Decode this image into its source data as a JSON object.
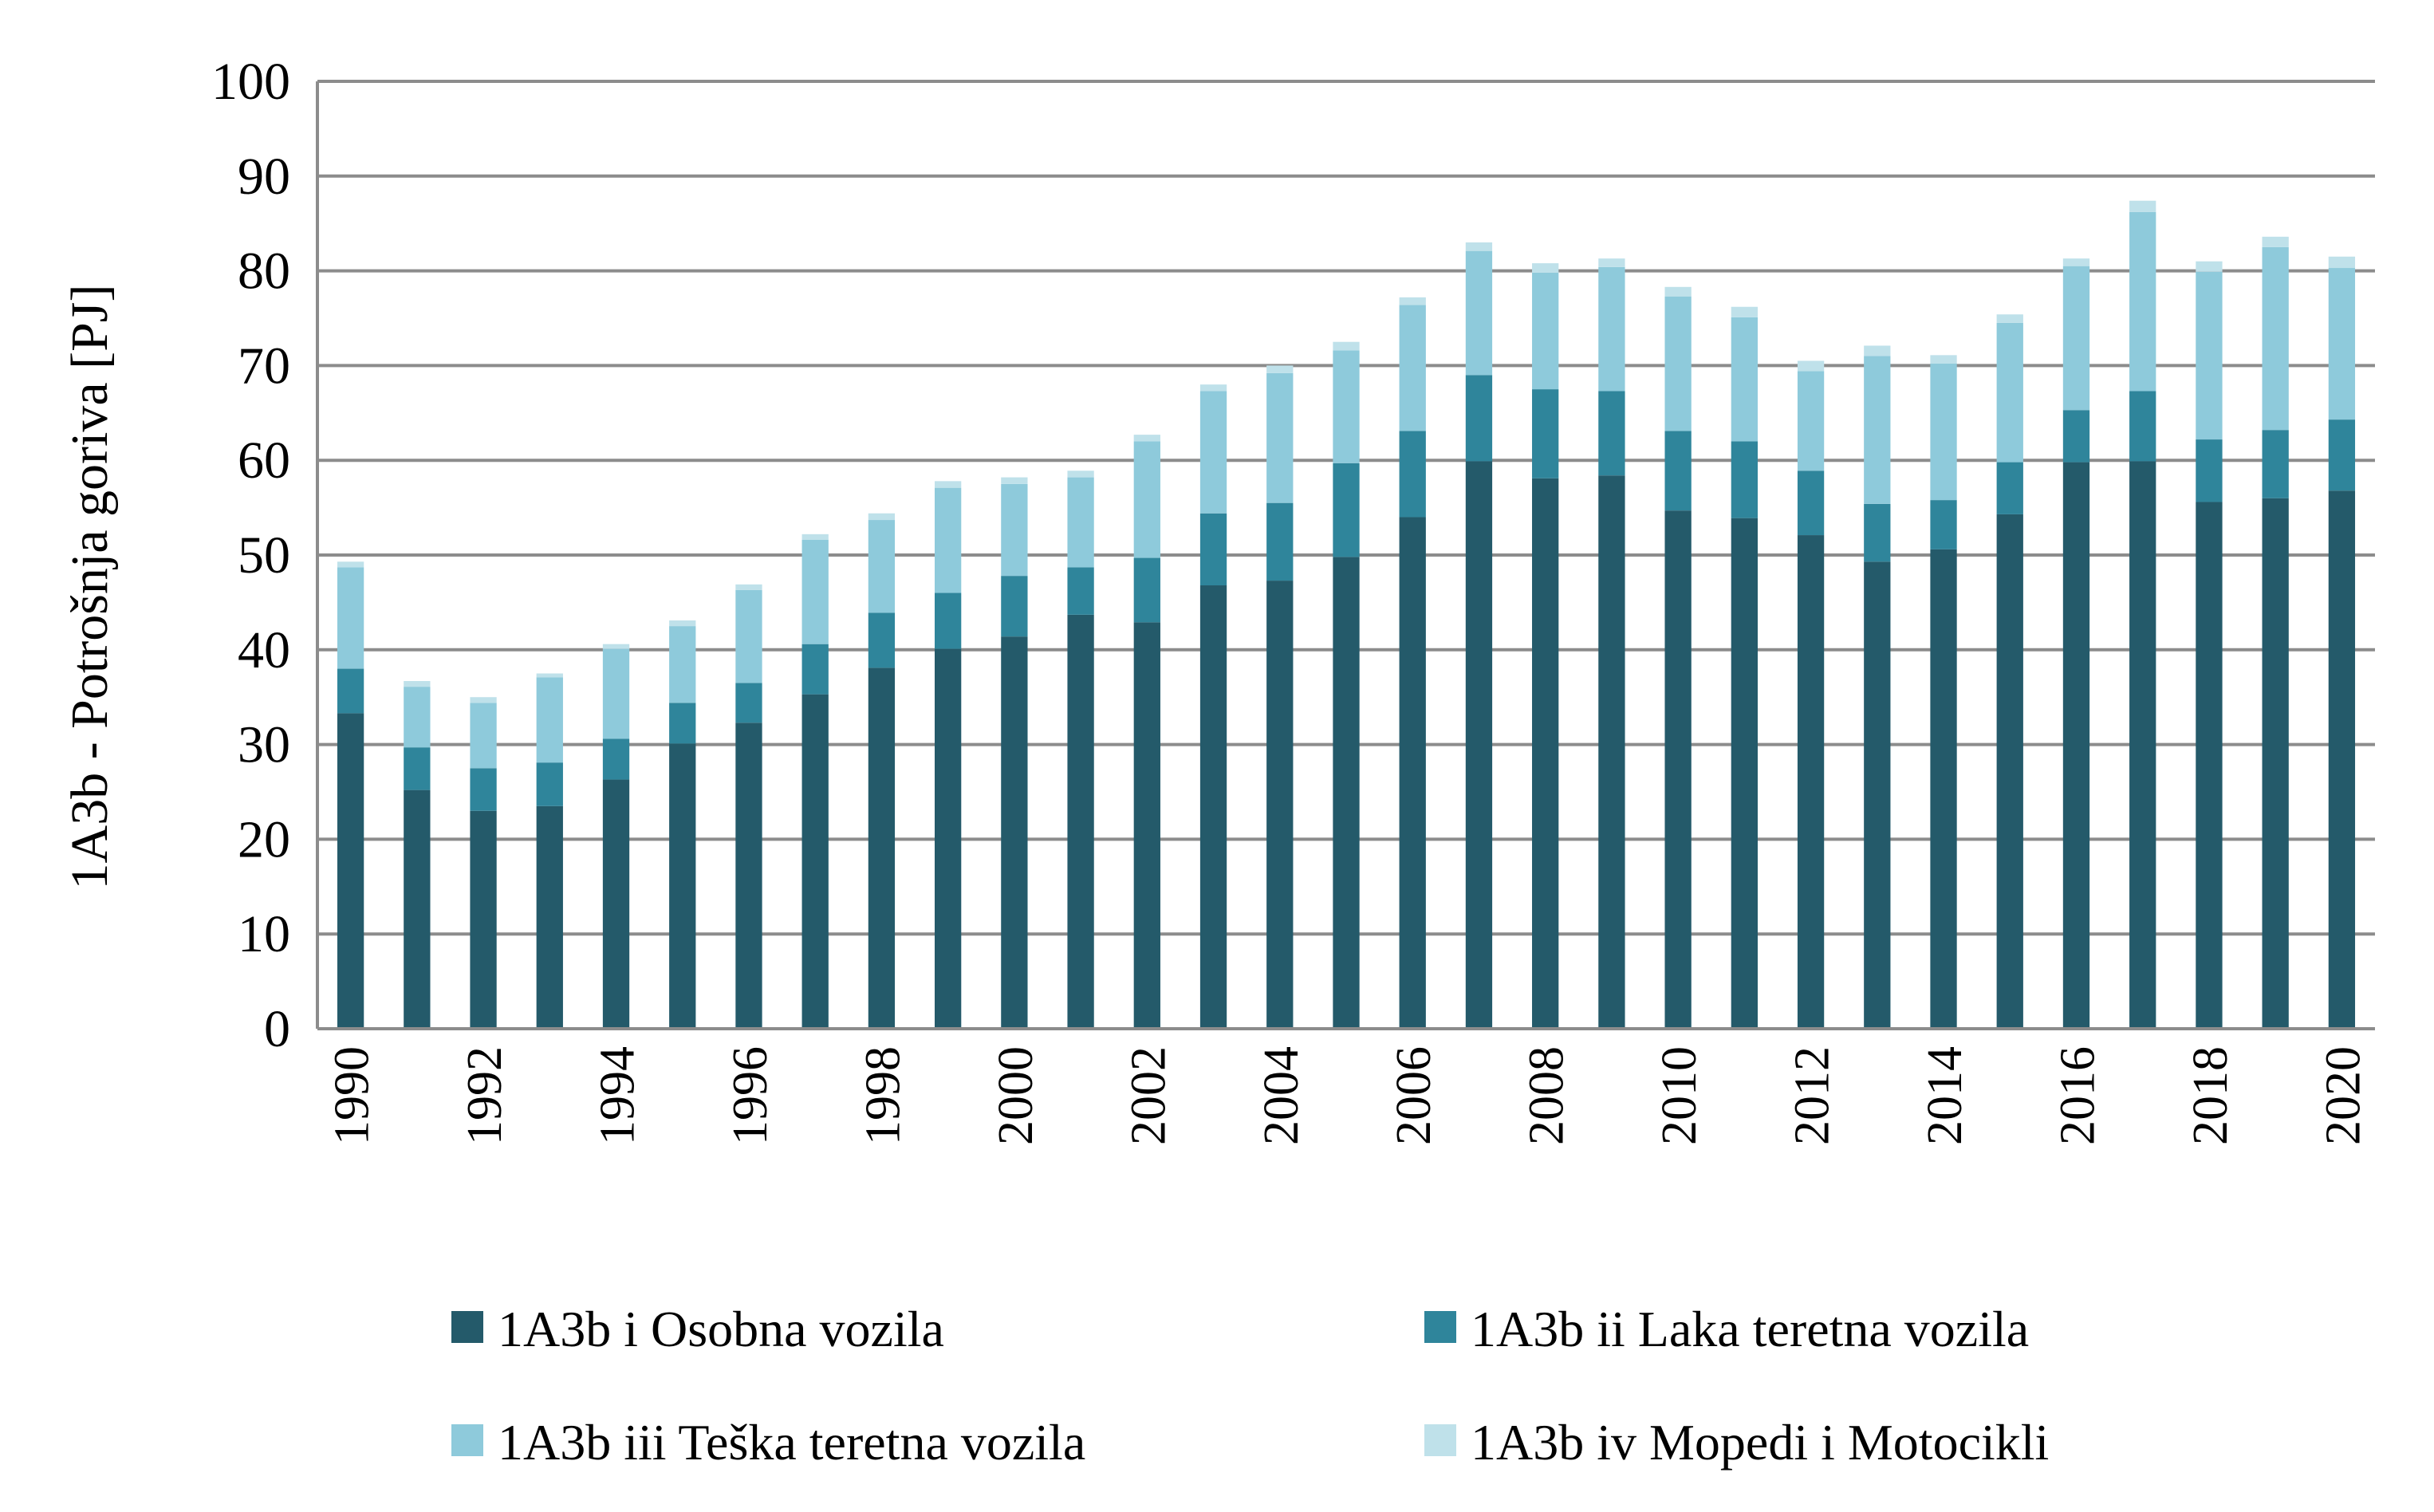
{
  "chart_data": {
    "type": "bar",
    "stacked": true,
    "title": "",
    "xlabel": "",
    "ylabel": "1A3b  - Potrošnja goriva [PJ]",
    "ylim": [
      0,
      100
    ],
    "yticks": [
      "0",
      "10",
      "20",
      "30",
      "40",
      "50",
      "60",
      "70",
      "80",
      "90",
      "100"
    ],
    "grid": true,
    "legend_position": "bottom",
    "categories": [
      "1990",
      "1991",
      "1992",
      "1993",
      "1994",
      "1995",
      "1996",
      "1997",
      "1998",
      "1999",
      "2000",
      "2001",
      "2002",
      "2003",
      "2004",
      "2005",
      "2006",
      "2007",
      "2008",
      "2009",
      "2010",
      "2011",
      "2012",
      "2013",
      "2014",
      "2015",
      "2016",
      "2017",
      "2018",
      "2019",
      "2020"
    ],
    "xtick_labels": [
      "1990",
      "1992",
      "1994",
      "1996",
      "1998",
      "2000",
      "2002",
      "2004",
      "2006",
      "2008",
      "2010",
      "2012",
      "2014",
      "2016",
      "2018",
      "2020"
    ],
    "series": [
      {
        "name": "1A3b i Osobna vozila",
        "color": "#245a6a",
        "values": [
          33.3,
          25.2,
          23.0,
          23.5,
          26.3,
          30.1,
          32.3,
          35.3,
          38.1,
          40.1,
          41.4,
          43.7,
          42.9,
          46.8,
          47.3,
          49.8,
          54.0,
          59.9,
          58.1,
          58.4,
          54.7,
          53.9,
          52.1,
          49.3,
          50.6,
          54.3,
          59.8,
          59.9,
          55.6,
          56.0,
          56.8
        ]
      },
      {
        "name": "1A3b ii Laka teretna vozila",
        "color": "#2f859b",
        "values": [
          4.7,
          4.5,
          4.5,
          4.6,
          4.3,
          4.3,
          4.2,
          5.3,
          5.8,
          5.9,
          6.4,
          5.0,
          6.8,
          7.6,
          8.2,
          9.9,
          9.1,
          9.1,
          9.4,
          8.9,
          8.4,
          8.1,
          6.8,
          6.1,
          5.2,
          5.5,
          5.5,
          7.4,
          6.6,
          7.2,
          7.5
        ]
      },
      {
        "name": "1A3b iii Teška teretna vozila",
        "color": "#8ecadb",
        "values": [
          10.7,
          6.4,
          6.9,
          9.0,
          9.5,
          8.1,
          9.8,
          11.0,
          9.8,
          11.1,
          9.7,
          9.5,
          12.3,
          12.9,
          13.7,
          11.9,
          13.3,
          13.1,
          12.3,
          13.1,
          14.2,
          13.1,
          10.5,
          15.6,
          14.4,
          14.7,
          15.2,
          18.9,
          17.7,
          19.3,
          16.0
        ]
      },
      {
        "name": "1A3b iv Mopedi i Motocikli",
        "color": "#bfe1ea",
        "values": [
          0.6,
          0.6,
          0.6,
          0.4,
          0.5,
          0.6,
          0.6,
          0.6,
          0.7,
          0.7,
          0.7,
          0.7,
          0.7,
          0.7,
          0.8,
          0.9,
          0.8,
          0.9,
          1.0,
          0.9,
          1.0,
          1.1,
          1.1,
          1.1,
          0.9,
          0.9,
          0.8,
          1.2,
          1.1,
          1.1,
          1.2
        ]
      }
    ]
  }
}
